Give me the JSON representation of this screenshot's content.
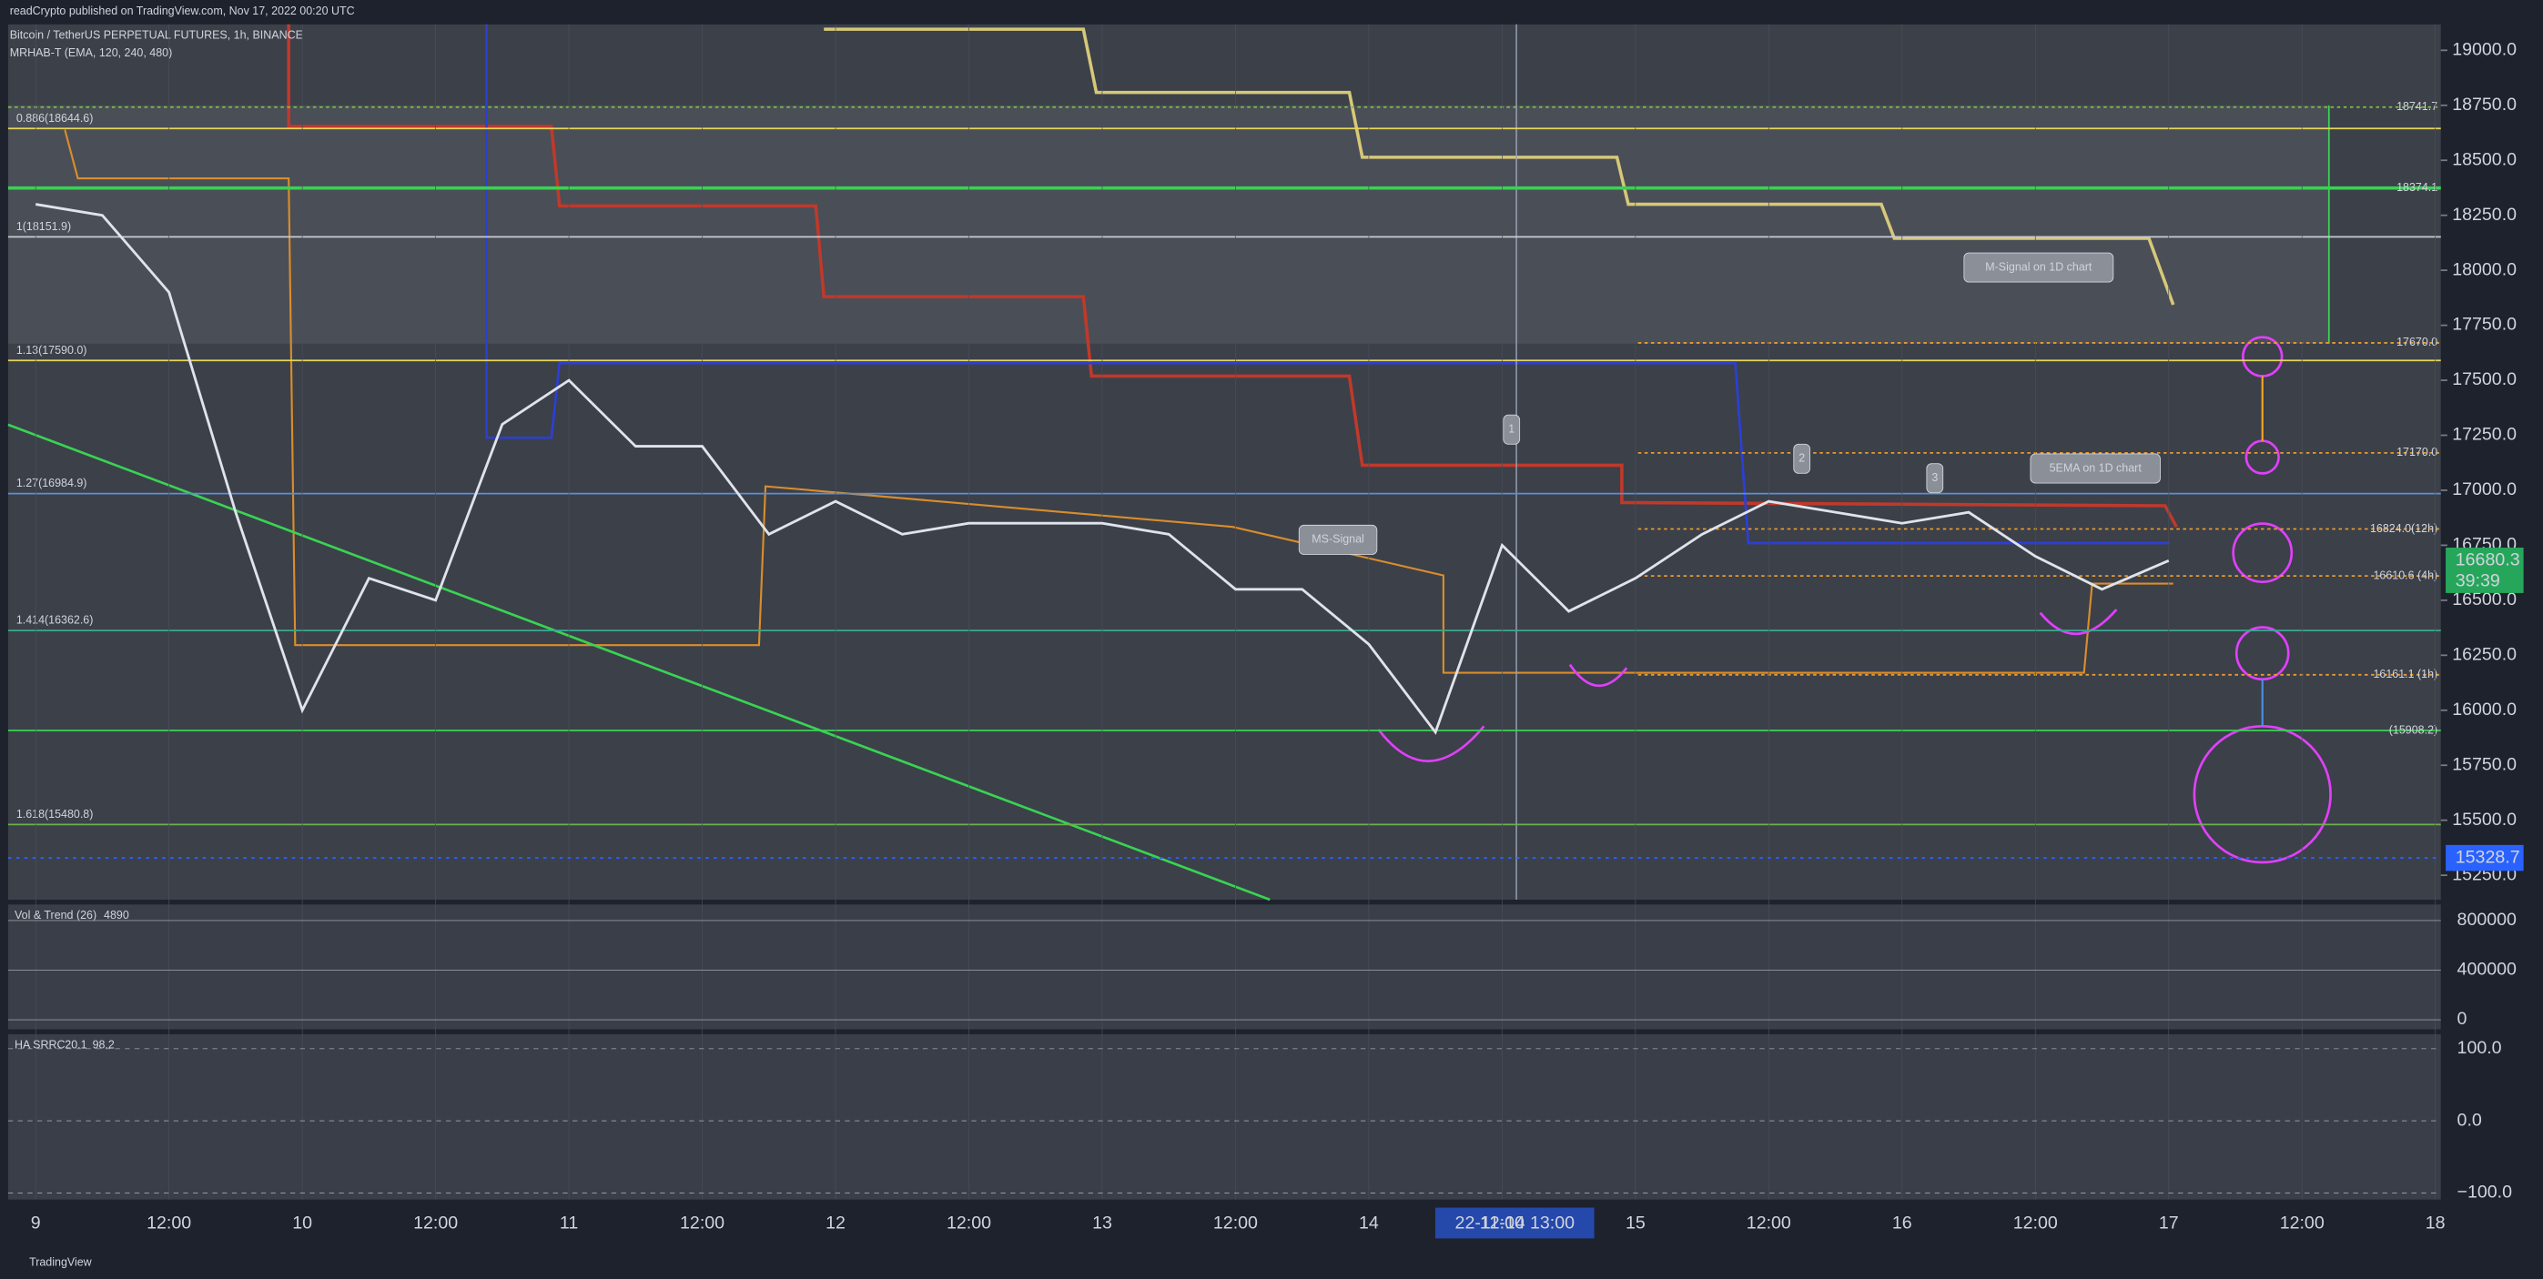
{
  "header": "readCrypto published on TradingView.com, Nov 17, 2022 00:20 UTC",
  "footer": "TradingView",
  "chart_data": {
    "type": "line",
    "legend_lines": [
      "Bitcoin / TetherUS PERPETUAL FUTURES, 1h, BINANCE",
      "MRHAB-T (EMA, 120, 240, 480)"
    ],
    "categories": [
      "9",
      null,
      "12:00",
      null,
      "10",
      null,
      "12:00",
      null,
      "11",
      null,
      "12:00",
      null,
      "12",
      null,
      "12:00",
      null,
      "13",
      null,
      "12:00",
      null,
      "14",
      null,
      "12:00",
      null,
      "15",
      null,
      "12:00",
      null,
      "16",
      null,
      "12:00",
      null,
      "17",
      null,
      "12:00",
      null,
      "18"
    ],
    "series": [
      {
        "color": "#e0e3eb",
        "values": [
          18300,
          18250,
          17900,
          16900,
          16000,
          16600,
          16500,
          17300,
          17500,
          17200,
          17200,
          16800,
          16950,
          16800,
          16850,
          16850,
          16850,
          16800,
          16550,
          16550,
          16300,
          15900,
          16750,
          16450,
          16600,
          16800,
          16950,
          16900,
          16850,
          16900,
          16700,
          16550,
          16680,
          null,
          null,
          null,
          null
        ]
      }
    ],
    "ylim": [
      15139,
      19118
    ],
    "yticks": [
      {
        "value": 15250,
        "label": "15250.0"
      },
      {
        "value": 15500,
        "label": "15500.0"
      },
      {
        "value": 15750,
        "label": "15750.0"
      },
      {
        "value": 16000,
        "label": "16000.0"
      },
      {
        "value": 16250,
        "label": "16250.0"
      },
      {
        "value": 16500,
        "label": "16500.0"
      },
      {
        "value": 16750,
        "label": "16750.0"
      },
      {
        "value": 17000,
        "label": "17000.0"
      },
      {
        "value": 17250,
        "label": "17250.0"
      },
      {
        "value": 17500,
        "label": "17500.0"
      },
      {
        "value": 17750,
        "label": "17750.0"
      },
      {
        "value": 18000,
        "label": "18000.0"
      },
      {
        "value": 18250,
        "label": "18250.0"
      },
      {
        "value": 18500,
        "label": "18500.0"
      },
      {
        "value": 18750,
        "label": "18750.0"
      },
      {
        "value": 19000,
        "label": "19000.0"
      }
    ],
    "fib_levels": [
      {
        "label": "0.886(18644.6)",
        "value": 18644.6,
        "color": "#e6d55c"
      },
      {
        "label": "1(18151.9)",
        "value": 18151.9,
        "color": "#c8cbd3"
      },
      {
        "label": "1.13(17590.0)",
        "value": 17590.0,
        "color": "#e6d55c"
      },
      {
        "label": "1.27(16984.9)",
        "value": 16984.9,
        "color": "#5b8fd6"
      },
      {
        "label": "1.414(16362.6)",
        "value": 16362.6,
        "color": "#3aa88f"
      },
      {
        "label": "1.618(15480.8)",
        "value": 15480.8,
        "color": "#6ab04c"
      }
    ],
    "levels": [
      {
        "label": "18741.7",
        "value": 18741.7,
        "color": "#7cc242"
      },
      {
        "label": "18374.1",
        "value": 18374.1,
        "color": "#39d353"
      },
      {
        "label": "17670.0",
        "value": 17670.0,
        "color": "#e89b2f"
      },
      {
        "label": "17170.0",
        "value": 17170.0,
        "color": "#e89b2f"
      },
      {
        "label": "16824.0(12h)",
        "value": 16824.0,
        "color": "#e89b2f"
      },
      {
        "label": "16610.6 (4h)",
        "value": 16610.6,
        "color": "#e89b2f"
      },
      {
        "label": "16161.1 (1h)",
        "value": 16161.1,
        "color": "#e89b2f"
      },
      {
        "label": "(15908.2)",
        "value": 15908.2,
        "color": "#39d353"
      }
    ],
    "annotations": [
      "M-Signal on 1D chart",
      "5EMA on 1D chart",
      "MS-Signal",
      "1",
      "2",
      "3"
    ],
    "price_marker": {
      "value": 16680.3,
      "label": "16680.3",
      "countdown": "39:39",
      "color": "#26a65b"
    },
    "low_marker": {
      "value": 15328.7,
      "label": "15328.7",
      "color": "#2962ff"
    },
    "crosshair": "22-11-14  13:00",
    "panes": [
      {
        "title": "Vol & Trend (26)",
        "reading": "4890",
        "ylim": [
          -77000,
          929000
        ],
        "yticks": [
          800000,
          400000,
          0
        ]
      },
      {
        "title": "HA SRRC",
        "reading": "20.1",
        "reading2": "98.2",
        "ylim": [
          -109,
          120
        ],
        "yticks": [
          {
            "value": 100,
            "label": "100.0"
          },
          {
            "value": 0,
            "label": "0.0"
          },
          {
            "value": -100,
            "label": "−100.0"
          }
        ]
      }
    ]
  }
}
